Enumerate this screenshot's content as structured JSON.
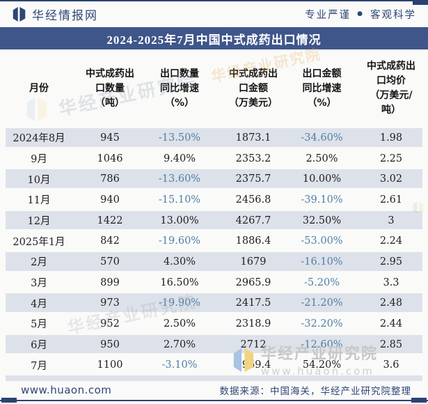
{
  "header": {
    "logo_text": "华经情报网",
    "tagline_left": "专业严谨",
    "tagline_separator": "●",
    "tagline_right": "客观科学"
  },
  "title": "2024-2025年7月中国中式成药出口情况",
  "chart_data": {
    "type": "table",
    "title": "2024-2025年7月中国中式成药出口情况",
    "columns": [
      "月份",
      "中式成药出\n口数量\n（吨）",
      "出口数量\n同比增速\n（%）",
      "中式成药出\n口金额\n（万美元）",
      "出口金额\n同比增速\n（%）",
      "中式成药出\n口均价\n（万美元/\n吨）"
    ],
    "rows": [
      [
        "2024年8月",
        "945",
        "-13.50%",
        "1873.1",
        "-34.60%",
        "1.98"
      ],
      [
        "9月",
        "1046",
        "9.40%",
        "2353.2",
        "2.50%",
        "2.25"
      ],
      [
        "10月",
        "786",
        "-13.60%",
        "2375.7",
        "10.00%",
        "3.02"
      ],
      [
        "11月",
        "940",
        "-15.10%",
        "2456.8",
        "-39.10%",
        "2.61"
      ],
      [
        "12月",
        "1422",
        "13.00%",
        "4267.7",
        "32.50%",
        "3"
      ],
      [
        "2025年1月",
        "842",
        "-19.60%",
        "1886.4",
        "-53.00%",
        "2.24"
      ],
      [
        "2月",
        "570",
        "4.30%",
        "1679",
        "-16.10%",
        "2.95"
      ],
      [
        "3月",
        "899",
        "16.50%",
        "2965.9",
        "-5.20%",
        "3.3"
      ],
      [
        "4月",
        "973",
        "-19.90%",
        "2417.5",
        "-21.20%",
        "2.48"
      ],
      [
        "5月",
        "952",
        "2.50%",
        "2318.9",
        "-32.20%",
        "2.44"
      ],
      [
        "6月",
        "950",
        "2.70%",
        "2712",
        "-12.60%",
        "2.85"
      ],
      [
        "7月",
        "1100",
        "-3.10%",
        "3959.4",
        "54.20%",
        "3.6"
      ]
    ]
  },
  "footer": {
    "site": "www.huaon.com",
    "source": "数据来源：中国海关，华经产业研究院整理"
  },
  "watermark": {
    "brand": "华经产业研究院",
    "site": "www.huaon.com"
  },
  "colors": {
    "banner": "#3f568b",
    "border": "#2c4270",
    "navy_text": "#2e4677",
    "stripe": "#dde1e9",
    "negative": "#4f81a6"
  }
}
